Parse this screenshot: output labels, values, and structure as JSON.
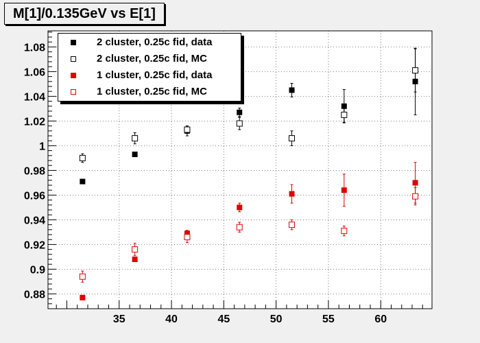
{
  "title": "M[1]/0.135GeV vs E[1]",
  "colors": {
    "black": "#000000",
    "red": "#e00000",
    "grid": "#555555"
  },
  "chart_data": {
    "type": "scatter",
    "title": "M[1]/0.135GeV vs E[1]",
    "xlim": [
      28.2,
      64.9
    ],
    "ylim": [
      0.868,
      1.093
    ],
    "xticks": [
      35,
      40,
      45,
      50,
      55,
      60
    ],
    "xtick_labels": [
      "35",
      "40",
      "45",
      "50",
      "55",
      "60"
    ],
    "yticks": [
      0.88,
      0.9,
      0.92,
      0.94,
      0.96,
      0.98,
      1.0,
      1.02,
      1.04,
      1.06,
      1.08
    ],
    "ytick_labels": [
      "0.88",
      "0.9",
      "0.92",
      "0.94",
      "0.96",
      "0.98",
      "1",
      "1.02",
      "1.04",
      "1.06",
      "1.08"
    ],
    "grid": true,
    "legend_position": "top-left",
    "series": [
      {
        "name": "2 cluster, 0.25c fid, data",
        "color": "#000000",
        "marker": "filled-square",
        "points": [
          {
            "x": 31.5,
            "y": 0.971,
            "err": 0.0015
          },
          {
            "x": 36.5,
            "y": 0.993,
            "err": 0.0015
          },
          {
            "x": 41.5,
            "y": 1.012,
            "err": 0.004
          },
          {
            "x": 46.5,
            "y": 1.027,
            "err": 0.0035
          },
          {
            "x": 51.5,
            "y": 1.045,
            "err": 0.0055
          },
          {
            "x": 56.5,
            "y": 1.032,
            "err": 0.0135
          },
          {
            "x": 63.3,
            "y": 1.052,
            "err": 0.027
          }
        ]
      },
      {
        "name": "2 cluster, 0.25c fid, MC",
        "color": "#000000",
        "marker": "open-square",
        "points": [
          {
            "x": 31.5,
            "y": 0.99,
            "err": 0.0035
          },
          {
            "x": 36.5,
            "y": 1.006,
            "err": 0.0045
          },
          {
            "x": 41.5,
            "y": 1.013,
            "err": 0.003
          },
          {
            "x": 46.5,
            "y": 1.018,
            "err": 0.005
          },
          {
            "x": 51.5,
            "y": 1.006,
            "err": 0.006
          },
          {
            "x": 56.5,
            "y": 1.025,
            "err": 0.006
          },
          {
            "x": 63.3,
            "y": 1.061,
            "err": 0.0175
          }
        ]
      },
      {
        "name": "1 cluster, 0.25c fid, data",
        "color": "#e00000",
        "marker": "filled-square",
        "points": [
          {
            "x": 31.5,
            "y": 0.877,
            "err": 0.001
          },
          {
            "x": 36.5,
            "y": 0.908,
            "err": 0.0015
          },
          {
            "x": 41.5,
            "y": 0.929,
            "err": 0.0025
          },
          {
            "x": 46.5,
            "y": 0.95,
            "err": 0.0035
          },
          {
            "x": 51.5,
            "y": 0.961,
            "err": 0.0075
          },
          {
            "x": 56.5,
            "y": 0.964,
            "err": 0.013
          },
          {
            "x": 63.3,
            "y": 0.97,
            "err": 0.0165
          }
        ]
      },
      {
        "name": "1 cluster, 0.25c fid, MC",
        "color": "#e00000",
        "marker": "open-square",
        "points": [
          {
            "x": 31.5,
            "y": 0.894,
            "err": 0.0045
          },
          {
            "x": 36.5,
            "y": 0.916,
            "err": 0.005
          },
          {
            "x": 41.5,
            "y": 0.926,
            "err": 0.0045
          },
          {
            "x": 46.5,
            "y": 0.934,
            "err": 0.004
          },
          {
            "x": 51.5,
            "y": 0.936,
            "err": 0.004
          },
          {
            "x": 56.5,
            "y": 0.931,
            "err": 0.004
          },
          {
            "x": 63.3,
            "y": 0.959,
            "err": 0.007
          }
        ]
      }
    ]
  }
}
